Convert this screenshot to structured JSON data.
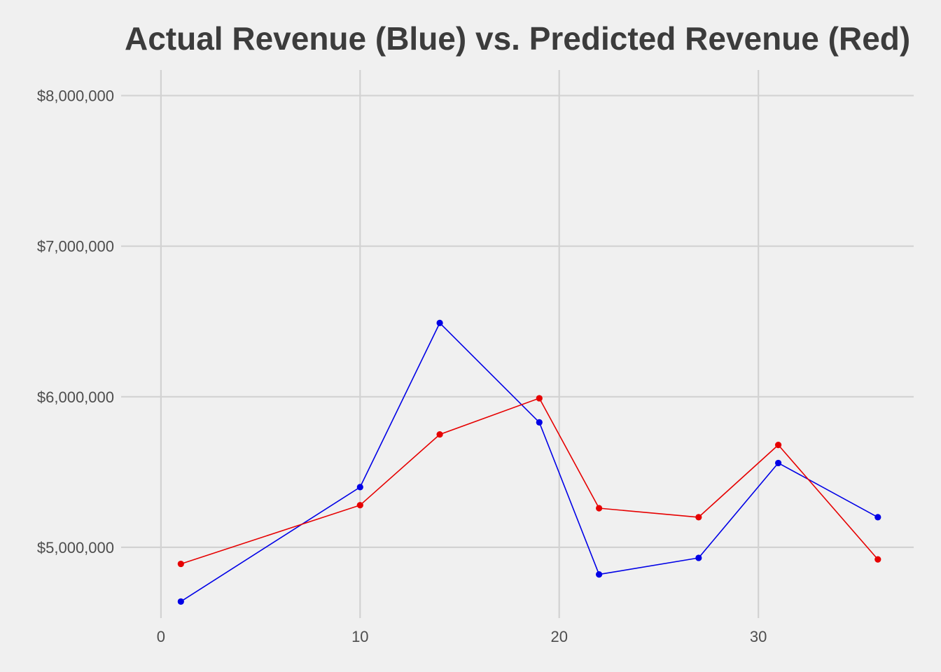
{
  "chart_data": {
    "type": "line",
    "title": "Actual Revenue (Blue) vs. Predicted Revenue (Red)",
    "xlabel": "",
    "ylabel": "",
    "xlim": [
      -2,
      37.8
    ],
    "ylim": [
      4530000,
      8170000
    ],
    "x_ticks": [
      0,
      10,
      20,
      30
    ],
    "x_tick_labels": [
      "0",
      "10",
      "20",
      "30"
    ],
    "y_ticks": [
      5000000,
      6000000,
      7000000,
      8000000
    ],
    "y_tick_labels": [
      "$5,000,000",
      "$6,000,000",
      "$7,000,000",
      "$8,000,000"
    ],
    "grid": true,
    "legend": "none",
    "series": [
      {
        "color": "#0000e6",
        "x": [
          1,
          10,
          14,
          19,
          22,
          27,
          31,
          36
        ],
        "y": [
          4640000,
          5400000,
          6490000,
          5830000,
          4820000,
          4930000,
          5560000,
          5200000
        ]
      },
      {
        "color": "#e60000",
        "x": [
          1,
          10,
          14,
          19,
          22,
          27,
          31,
          36
        ],
        "y": [
          4890000,
          5280000,
          5750000,
          5990000,
          5260000,
          5200000,
          5680000,
          4920000
        ]
      }
    ]
  }
}
